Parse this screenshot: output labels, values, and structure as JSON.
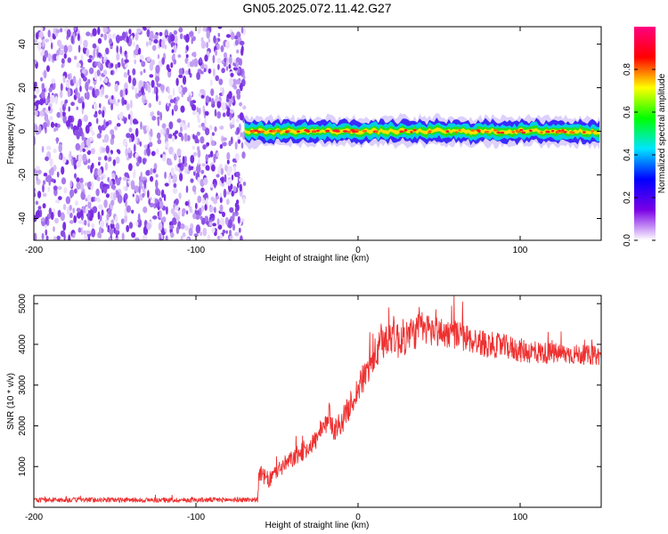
{
  "title": "GN05.2025.072.11.42.G27",
  "chart_data": [
    {
      "type": "heatmap",
      "xlabel": "Height of straight line (km)",
      "ylabel": "Frequency (Hz)",
      "xlim": [
        -200,
        150
      ],
      "ylim": [
        -50,
        48
      ],
      "x_ticks": [
        "-200",
        "-100",
        "0",
        "100"
      ],
      "x_tick_values": [
        -200,
        -100,
        0,
        100
      ],
      "y_ticks": [
        "40",
        "20",
        "0",
        "-20",
        "-40"
      ],
      "y_tick_values": [
        40,
        20,
        0,
        -20,
        -40
      ],
      "noise_region_x": [
        -200,
        -70
      ],
      "signal_band_center_hz": 0,
      "signal_band_halfwidth_hz": 4,
      "colorbar": {
        "label": "Normalized spectral amplitude",
        "range": [
          0,
          1
        ],
        "ticks": [
          "0.0",
          "0.2",
          "0.4",
          "0.6",
          "0.8"
        ],
        "tick_values": [
          0,
          0.2,
          0.4,
          0.6,
          0.8
        ],
        "colormap": [
          "#ffffff",
          "#7a00e6",
          "#0000ff",
          "#00e5ff",
          "#00ff00",
          "#ffff00",
          "#ff0000",
          "#ff0080"
        ]
      }
    },
    {
      "type": "line",
      "xlabel": "Height of straight line (km)",
      "ylabel": "SNR (10 * v/v)",
      "xlim": [
        -200,
        150
      ],
      "ylim": [
        0,
        5200
      ],
      "x_ticks": [
        "-200",
        "-100",
        "0",
        "100"
      ],
      "x_tick_values": [
        -200,
        -100,
        0,
        100
      ],
      "y_ticks": [
        "5000",
        "4000",
        "3000",
        "2000",
        "1000"
      ],
      "y_tick_values": [
        5000,
        4000,
        3000,
        2000,
        1000
      ],
      "color": "#ee3030",
      "x": [
        -200,
        -180,
        -160,
        -140,
        -120,
        -100,
        -80,
        -62,
        -61,
        -55,
        -50,
        -45,
        -40,
        -35,
        -30,
        -25,
        -20,
        -18,
        -15,
        -10,
        -5,
        0,
        5,
        10,
        15,
        20,
        25,
        30,
        40,
        50,
        60,
        70,
        80,
        90,
        100,
        110,
        120,
        130,
        140,
        150
      ],
      "y": [
        180,
        180,
        185,
        180,
        175,
        180,
        185,
        190,
        850,
        650,
        900,
        1050,
        1200,
        1350,
        1500,
        1700,
        2000,
        2300,
        1900,
        2100,
        2500,
        2900,
        3300,
        3700,
        4000,
        4300,
        4100,
        4200,
        4400,
        4300,
        4250,
        4100,
        4000,
        3950,
        3850,
        3800,
        3780,
        3760,
        3740,
        3720
      ],
      "noise_amplitude": [
        60,
        60,
        60,
        60,
        60,
        60,
        60,
        60,
        200,
        200,
        200,
        220,
        220,
        240,
        240,
        250,
        260,
        300,
        280,
        300,
        320,
        350,
        380,
        420,
        450,
        500,
        480,
        450,
        420,
        380,
        360,
        340,
        320,
        300,
        300,
        280,
        260,
        250,
        240,
        230
      ]
    }
  ]
}
